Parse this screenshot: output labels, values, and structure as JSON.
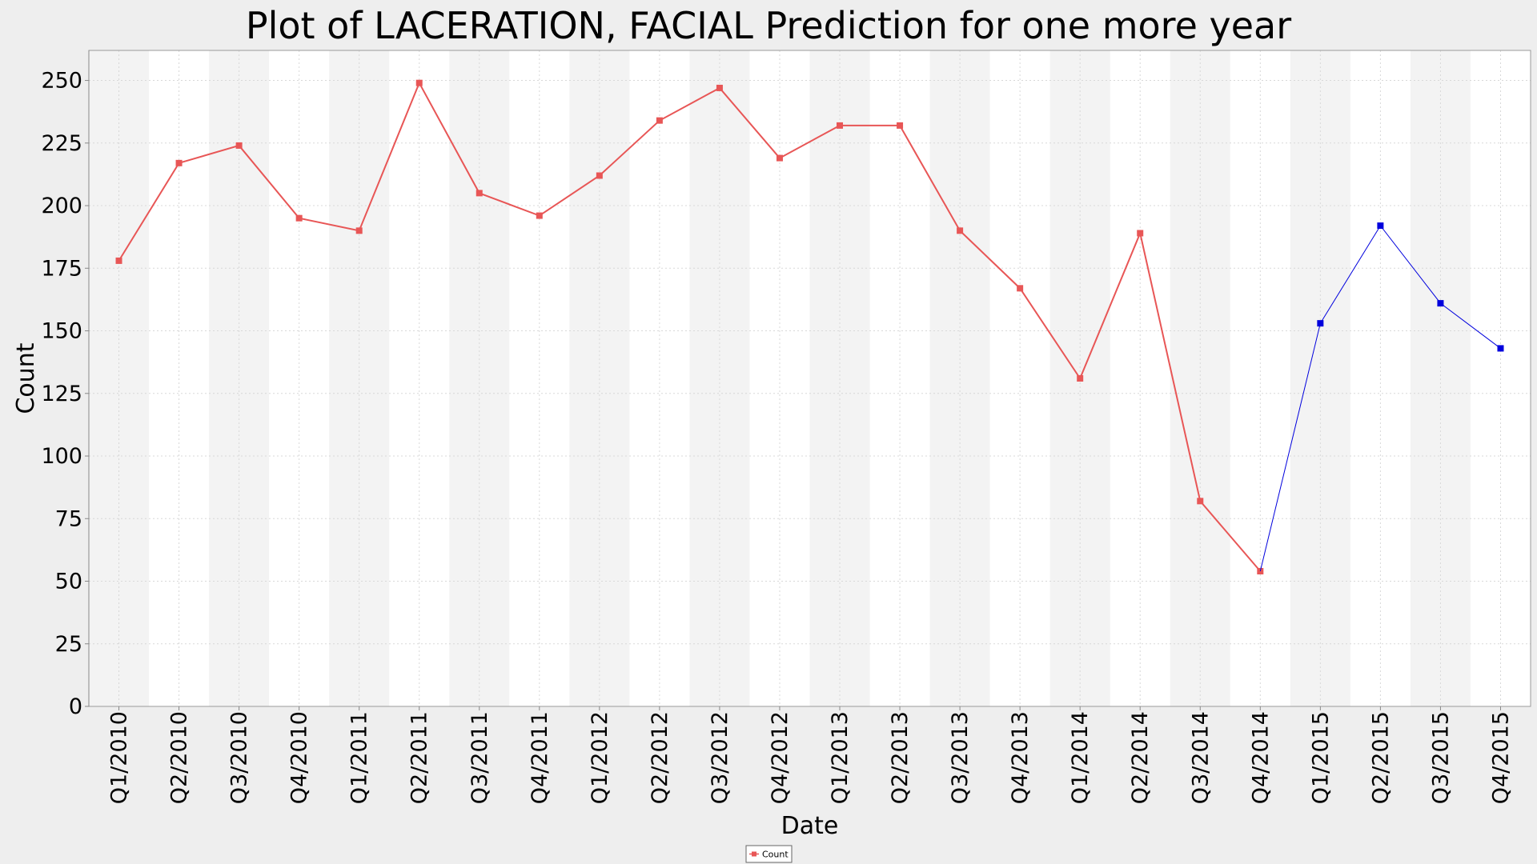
{
  "chart_data": {
    "type": "line",
    "title": "Plot of LACERATION, FACIAL Prediction for one more year",
    "xlabel": "Date",
    "ylabel": "Count",
    "ylim": [
      0,
      262
    ],
    "yticks": [
      0,
      25,
      50,
      75,
      100,
      125,
      150,
      175,
      200,
      225,
      250
    ],
    "grid": true,
    "legend_position": "bottom-center",
    "categories": [
      "Q1/2010",
      "Q2/2010",
      "Q3/2010",
      "Q4/2010",
      "Q1/2011",
      "Q2/2011",
      "Q3/2011",
      "Q4/2011",
      "Q1/2012",
      "Q2/2012",
      "Q3/2012",
      "Q4/2012",
      "Q1/2013",
      "Q2/2013",
      "Q3/2013",
      "Q4/2013",
      "Q1/2014",
      "Q2/2014",
      "Q3/2014",
      "Q4/2014",
      "Q1/2015",
      "Q2/2015",
      "Q3/2015",
      "Q4/2015"
    ],
    "series": [
      {
        "name": "Count",
        "color": "#e85656",
        "values": [
          178,
          217,
          224,
          195,
          190,
          249,
          205,
          196,
          212,
          234,
          247,
          219,
          232,
          232,
          190,
          167,
          131,
          189,
          82,
          54,
          null,
          null,
          null,
          null
        ]
      },
      {
        "color": "#0000dd",
        "values": [
          null,
          null,
          null,
          null,
          null,
          null,
          null,
          null,
          null,
          null,
          null,
          null,
          null,
          null,
          null,
          null,
          null,
          null,
          null,
          54,
          153,
          192,
          161,
          143
        ]
      }
    ]
  }
}
